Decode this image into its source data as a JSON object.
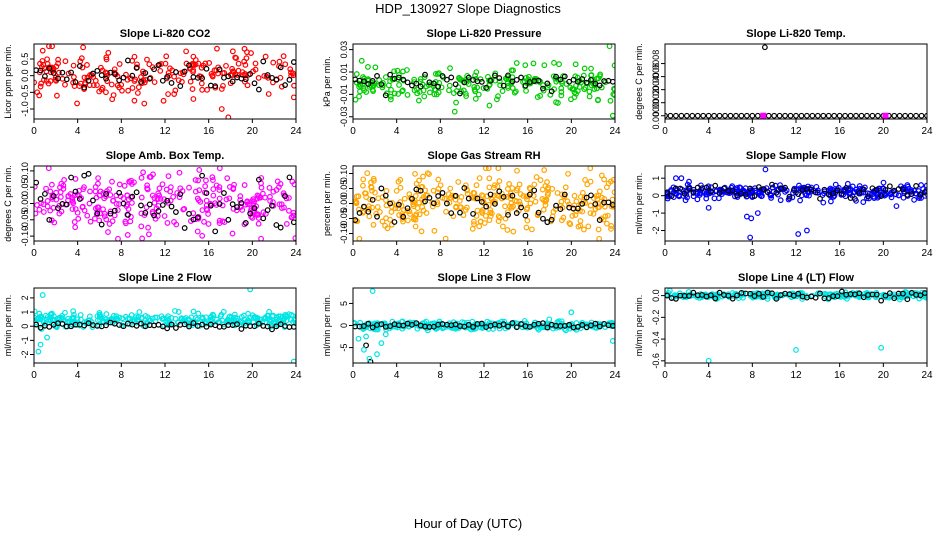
{
  "title": "HDP_130927  Slope Diagnostics",
  "xlabel": "Hour of Day (UTC)",
  "chart_data": [
    {
      "type": "scatter",
      "title": "Slope Li-820 CO2",
      "ylabel": "Licor ppm per min.",
      "color": "#ff0000",
      "xlim": [
        0,
        24
      ],
      "xticks": [
        0,
        4,
        8,
        12,
        16,
        20,
        24
      ],
      "ylim": [
        -1.3,
        0.95
      ],
      "yticks": [
        -1.0,
        -0.5,
        0.0,
        0.5
      ],
      "yticklabels": [
        "-1.0",
        "-0.5",
        "0.0",
        "0.5"
      ],
      "center": 0.05,
      "spread": 0.35,
      "n": 220,
      "seed": 11,
      "outliers": [
        [
          0.8,
          0.75
        ],
        [
          2.1,
          -0.6
        ],
        [
          4.5,
          0.85
        ],
        [
          9.2,
          -0.75
        ],
        [
          14.6,
          -0.7
        ],
        [
          17.2,
          -1.0
        ],
        [
          17.8,
          -1.25
        ],
        [
          21.5,
          -0.55
        ]
      ],
      "black_center": 0.05,
      "black_spread": 0.22
    },
    {
      "type": "scatter",
      "title": "Slope Li-820 Pressure",
      "ylabel": "kPa per min.",
      "color": "#00cc00",
      "xlim": [
        0,
        24
      ],
      "xticks": [
        0,
        4,
        8,
        12,
        16,
        20,
        24
      ],
      "ylim": [
        -0.032,
        0.035
      ],
      "yticks": [
        -0.03,
        -0.01,
        0.01,
        0.03
      ],
      "yticklabels": [
        "-0.03",
        "-0.01",
        "0.01",
        "0.03"
      ],
      "center": 0.0,
      "spread": 0.007,
      "n": 240,
      "seed": 23,
      "outliers": [
        [
          23.5,
          0.033
        ],
        [
          23.8,
          -0.029
        ],
        [
          12.5,
          -0.02
        ],
        [
          18.6,
          -0.017
        ],
        [
          0.8,
          0.02
        ],
        [
          15.0,
          0.018
        ]
      ],
      "black_center": 0.001,
      "black_spread": 0.004
    },
    {
      "type": "scatter",
      "title": "Slope Li-820 Temp.",
      "ylabel": "degrees C per min.",
      "color": "#ff00ff",
      "xlim": [
        0,
        24
      ],
      "xticks": [
        0,
        4,
        8,
        12,
        16,
        20,
        24
      ],
      "ylim": [
        -5e-05,
        0.0011
      ],
      "yticks": [
        0.0,
        0.0002,
        0.0004,
        0.0006,
        0.0008
      ],
      "yticklabels": [
        "0.0000",
        "0.0002",
        "0.0004",
        "0.0006",
        "0.0008"
      ],
      "flat": 0.0,
      "n": 48,
      "seed": 5,
      "outliers": [
        [
          9.15,
          0.00105
        ]
      ],
      "magenta_marks": [
        9.0,
        20.2
      ]
    },
    {
      "type": "scatter",
      "title": "Slope Amb. Box Temp.",
      "ylabel": "degrees C per min.",
      "color": "#ff00ff",
      "xlim": [
        0,
        24
      ],
      "xticks": [
        0,
        4,
        8,
        12,
        16,
        20,
        24
      ],
      "ylim": [
        -0.115,
        0.115
      ],
      "yticks": [
        -0.1,
        -0.05,
        0.0,
        0.05,
        0.1
      ],
      "yticklabels": [
        "-0.10",
        "-0.05",
        "0.00",
        "0.05",
        "0.10"
      ],
      "center": 0.0,
      "spread": 0.045,
      "n": 300,
      "seed": 37,
      "outliers": [],
      "black_center": 0.0,
      "black_spread": 0.04
    },
    {
      "type": "scatter",
      "title": "Slope Gas Stream RH",
      "ylabel": "percent per min.",
      "color": "#ffa500",
      "xlim": [
        0,
        24
      ],
      "xticks": [
        0,
        4,
        8,
        12,
        16,
        20,
        24
      ],
      "ylim": [
        -0.125,
        0.125
      ],
      "yticks": [
        -0.1,
        -0.05,
        0.0,
        0.05,
        0.1
      ],
      "yticklabels": [
        "-0.10",
        "-0.05",
        "0.00",
        "0.05",
        "0.10"
      ],
      "center": 0.0,
      "spread": 0.05,
      "n": 340,
      "seed": 41,
      "outliers": [],
      "black_center": 0.0,
      "black_spread": 0.035
    },
    {
      "type": "scatter",
      "title": "Slope Sample Flow",
      "ylabel": "ml/min per min.",
      "color": "#0000ff",
      "xlim": [
        0,
        24
      ],
      "xticks": [
        0,
        4,
        8,
        12,
        16,
        20,
        24
      ],
      "ylim": [
        -2.6,
        1.7
      ],
      "yticks": [
        -2,
        -1,
        0,
        1
      ],
      "yticklabels": [
        "-2",
        "-1",
        "0",
        "1"
      ],
      "center": 0.2,
      "spread": 0.2,
      "n": 300,
      "seed": 53,
      "outliers": [
        [
          1.0,
          1.0
        ],
        [
          1.5,
          1.0
        ],
        [
          2.2,
          0.8
        ],
        [
          4.0,
          -0.7
        ],
        [
          7.5,
          -1.2
        ],
        [
          7.9,
          -1.3
        ],
        [
          8.5,
          -1.0
        ],
        [
          9.2,
          1.5
        ],
        [
          12.2,
          -2.2
        ],
        [
          13.0,
          -2.0
        ],
        [
          14.5,
          -0.4
        ],
        [
          17.5,
          -0.3
        ],
        [
          21.2,
          -0.6
        ],
        [
          7.8,
          -2.4
        ]
      ],
      "black_center": 0.25,
      "black_spread": 0.2
    },
    {
      "type": "scatter",
      "title": "Slope Line 2 Flow",
      "ylabel": "ml/min per min.",
      "color": "#00e5e5",
      "xlim": [
        0,
        24
      ],
      "xticks": [
        0,
        4,
        8,
        12,
        16,
        20,
        24
      ],
      "ylim": [
        -2.6,
        2.7
      ],
      "yticks": [
        -2,
        -1,
        0,
        1,
        2
      ],
      "yticklabels": [
        "-2",
        "-1",
        "0",
        "1",
        "2"
      ],
      "center": 0.45,
      "spread": 0.22,
      "n": 300,
      "seed": 67,
      "outliers": [
        [
          0.8,
          2.2
        ],
        [
          0.4,
          -1.8
        ],
        [
          0.6,
          -1.3
        ],
        [
          1.2,
          -0.8
        ],
        [
          19.8,
          2.6
        ],
        [
          23.8,
          -2.5
        ]
      ],
      "black_center": 0.05,
      "black_spread": 0.1
    },
    {
      "type": "scatter",
      "title": "Slope Line 3 Flow",
      "ylabel": "ml/min per min.",
      "color": "#00e5e5",
      "xlim": [
        0,
        24
      ],
      "xticks": [
        0,
        4,
        8,
        12,
        16,
        20,
        24
      ],
      "ylim": [
        -8.5,
        8.5
      ],
      "yticks": [
        -5,
        0,
        5
      ],
      "yticklabels": [
        "-5",
        "0",
        "5"
      ],
      "center": 0.0,
      "spread": 0.45,
      "n": 280,
      "seed": 79,
      "outliers": [
        [
          1.0,
          -5.5
        ],
        [
          1.5,
          -7.5
        ],
        [
          2.2,
          -6.5
        ],
        [
          2.6,
          -4.0
        ],
        [
          1.2,
          -2.5
        ],
        [
          1.8,
          7.8
        ],
        [
          3.0,
          -2.0
        ],
        [
          20.0,
          3.0
        ],
        [
          23.8,
          -3.5
        ],
        [
          0.5,
          -3.0
        ]
      ],
      "black_center": 0.0,
      "black_spread": 0.3,
      "black_outliers": [
        [
          1.6,
          -8.2
        ],
        [
          1.2,
          -4.5
        ]
      ]
    },
    {
      "type": "scatter",
      "title": "Slope Line 4 (LT) Flow",
      "ylabel": "ml/min per min.",
      "color": "#00e5e5",
      "xlim": [
        0,
        24
      ],
      "xticks": [
        0,
        4,
        8,
        12,
        16,
        20,
        24
      ],
      "ylim": [
        -0.62,
        0.07
      ],
      "yticks": [
        -0.6,
        -0.4,
        -0.2,
        0.0
      ],
      "yticklabels": [
        "-0.6",
        "-0.4",
        "-0.2",
        "0.0"
      ],
      "center": 0.0,
      "spread": 0.015,
      "n": 260,
      "seed": 97,
      "outliers": [
        [
          4.0,
          -0.6
        ],
        [
          12.0,
          -0.5
        ],
        [
          19.8,
          -0.48
        ]
      ],
      "black_center": 0.0,
      "black_spread": 0.02
    }
  ]
}
